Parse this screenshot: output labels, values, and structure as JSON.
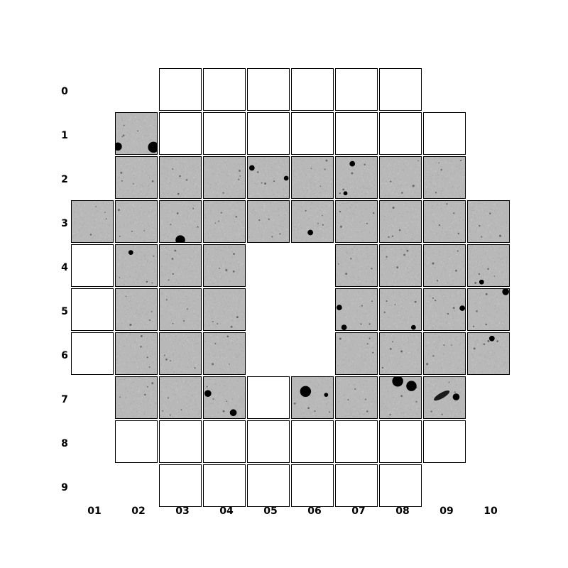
{
  "rows": [
    "0",
    "1",
    "2",
    "3",
    "4",
    "5",
    "6",
    "7",
    "8",
    "9"
  ],
  "columns": [
    "01",
    "02",
    "03",
    "04",
    "05",
    "06",
    "07",
    "08",
    "09",
    "10"
  ],
  "grid": [
    [
      null,
      null,
      "empty",
      "empty",
      "empty",
      "empty",
      "empty",
      "empty",
      null,
      null
    ],
    [
      null,
      "image",
      "empty",
      "empty",
      "empty",
      "empty",
      "empty",
      "empty",
      "empty",
      null
    ],
    [
      null,
      "image",
      "image",
      "image",
      "image",
      "image",
      "image",
      "image",
      "image",
      null
    ],
    [
      "image",
      "image",
      "image",
      "image",
      "image",
      "image",
      "image",
      "image",
      "image",
      "image"
    ],
    [
      "empty",
      "image",
      "image",
      "image",
      null,
      null,
      "image",
      "image",
      "image",
      "image"
    ],
    [
      "empty",
      "image",
      "image",
      "image",
      null,
      null,
      "image",
      "image",
      "image",
      "image"
    ],
    [
      "empty",
      "image",
      "image",
      "image",
      null,
      null,
      "image",
      "image",
      "image",
      "image"
    ],
    [
      null,
      "image",
      "image",
      "image",
      "empty",
      "image",
      "image",
      "image",
      "image",
      null
    ],
    [
      null,
      "empty",
      "empty",
      "empty",
      "empty",
      "empty",
      "empty",
      "empty",
      "empty",
      null
    ],
    [
      null,
      null,
      "empty",
      "empty",
      "empty",
      "empty",
      "empty",
      "empty",
      null,
      null
    ]
  ],
  "colors": {
    "tile_fill": "#b8b8b8",
    "tile_border": "#000000",
    "source": "#000000"
  }
}
